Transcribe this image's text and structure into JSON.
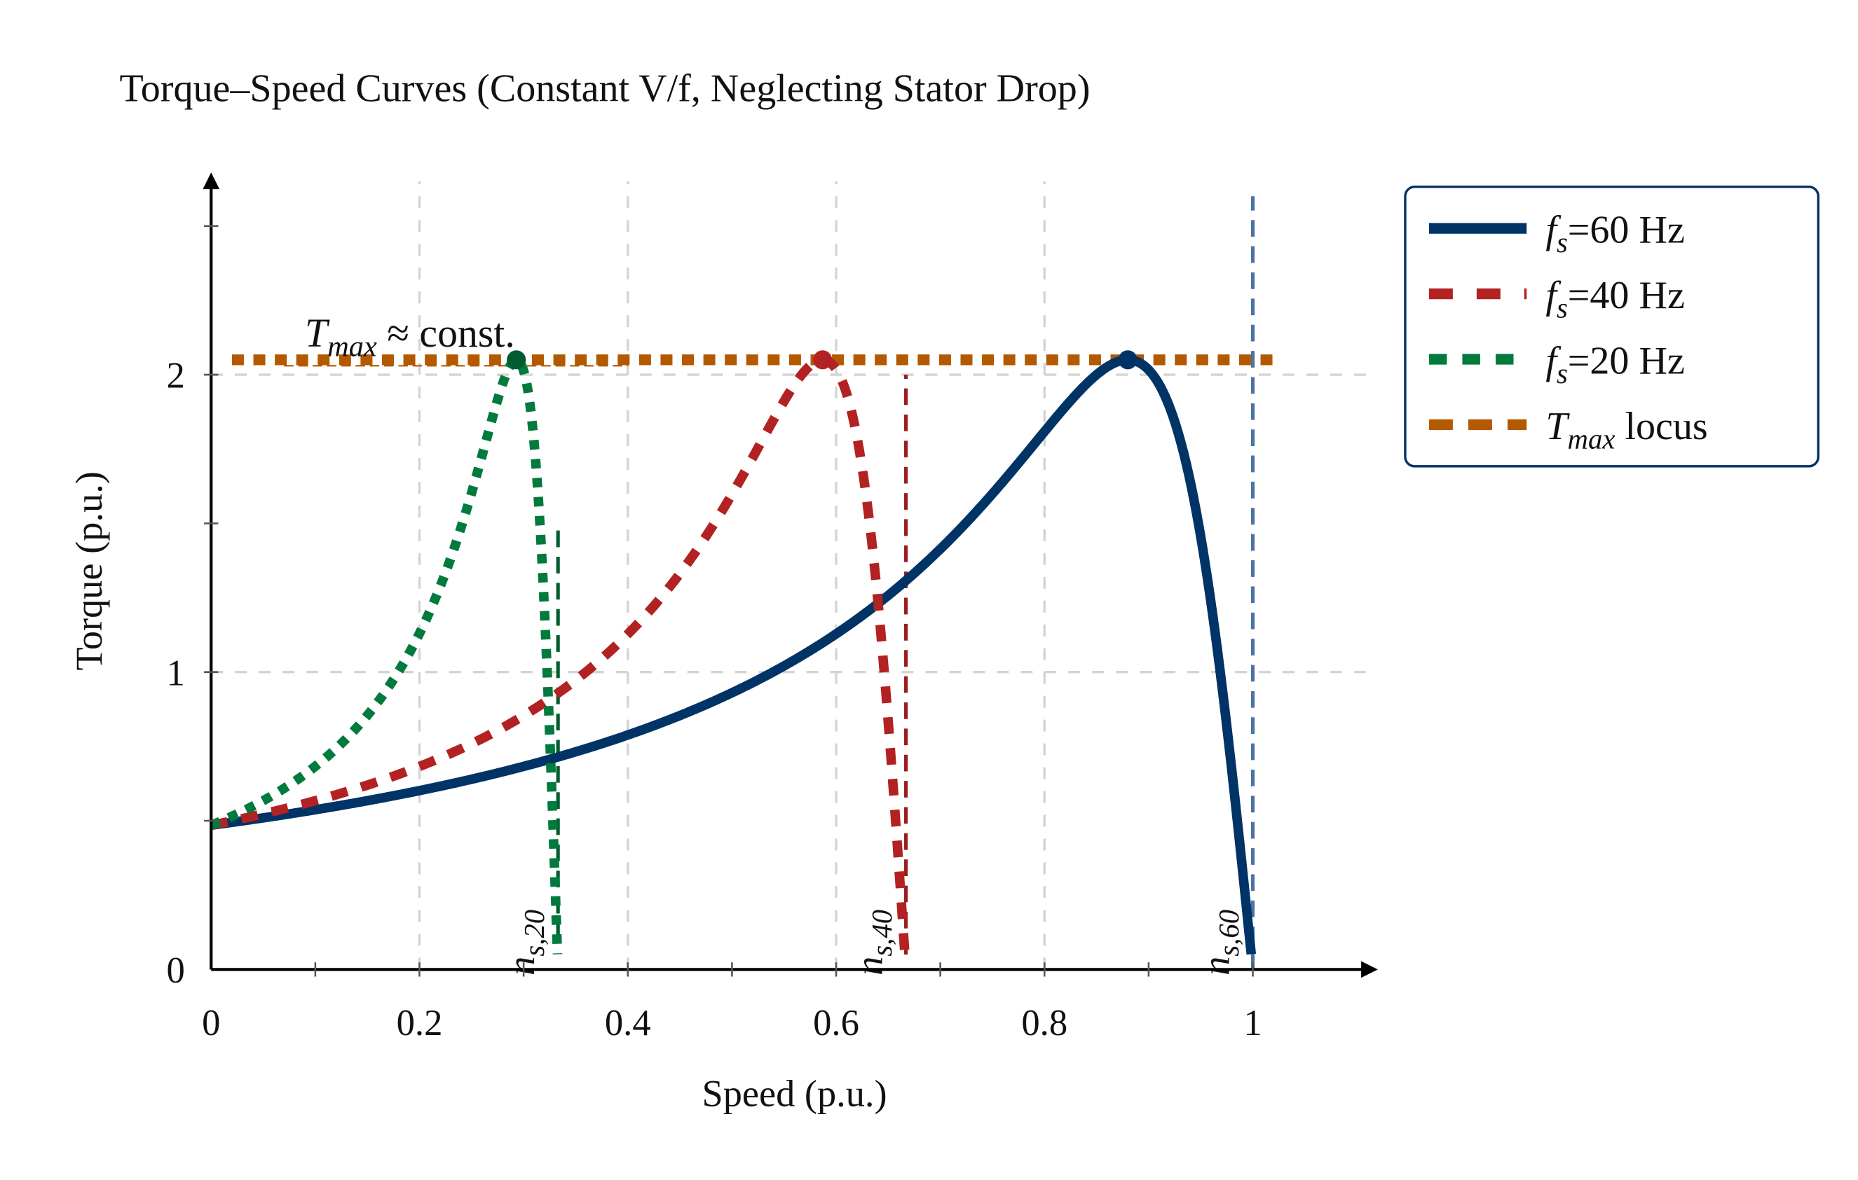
{
  "chart_data": {
    "type": "line",
    "title": "Torque–Speed Curves (Constant V/f, Neglecting Stator Drop)",
    "xlabel": "Speed (p.u.)",
    "ylabel": "Torque (p.u.)",
    "xlim": [
      0,
      1.12
    ],
    "ylim": [
      0,
      2.65
    ],
    "x_ticks": [
      "0",
      "0.2",
      "0.4",
      "0.6",
      "0.8",
      "1"
    ],
    "x_tick_values": [
      0,
      0.2,
      0.4,
      0.6,
      0.8,
      1
    ],
    "y_ticks": [
      "0",
      "1",
      "2"
    ],
    "y_tick_values": [
      0,
      1,
      2
    ],
    "grid": true,
    "legend_placement": "outside top-right",
    "t_max": 2.05,
    "slip_at_t_max": 0.12,
    "series": [
      {
        "name": {
          "main": "f",
          "sub": "s",
          "rest": "=60 Hz"
        },
        "sync_speed": 1.0,
        "peak": [
          0.88,
          2.05
        ],
        "color": "#003366",
        "style": "solid",
        "sync_label": {
          "main": "n",
          "sub": "s,60"
        },
        "sync_line": [
          0,
          2.6
        ],
        "sync_color": "#4a74a3"
      },
      {
        "name": {
          "main": "f",
          "sub": "s",
          "rest": "=40 Hz"
        },
        "sync_speed": 0.667,
        "peak": [
          0.587,
          2.05
        ],
        "color": "#b22222",
        "style": "dashed",
        "sync_label": {
          "main": "n",
          "sub": "s,40"
        },
        "sync_line": [
          0.05,
          2.0
        ],
        "sync_color": "#9b1c1c"
      },
      {
        "name": {
          "main": "f",
          "sub": "s",
          "rest": "=20 Hz"
        },
        "sync_speed": 0.333,
        "peak": [
          0.293,
          2.05
        ],
        "color": "#007a3d",
        "style": "dotted",
        "sync_label": {
          "main": "n",
          "sub": "s,20"
        },
        "sync_line": [
          0.1,
          1.5
        ],
        "sync_color": "#005c2e"
      }
    ],
    "tmax_locus": {
      "name": {
        "main": "T",
        "sub": "max",
        "rest": " locus"
      },
      "x": [
        0.02,
        1.02
      ],
      "y": 2.05,
      "color": "#b35900",
      "style": "dotted"
    },
    "annotation": {
      "main": "T",
      "sub": "max",
      "rest": " ≈ const.",
      "x": 0.09,
      "y": 2.15,
      "color": "#b35900"
    },
    "legend_border_color": "#003366"
  }
}
